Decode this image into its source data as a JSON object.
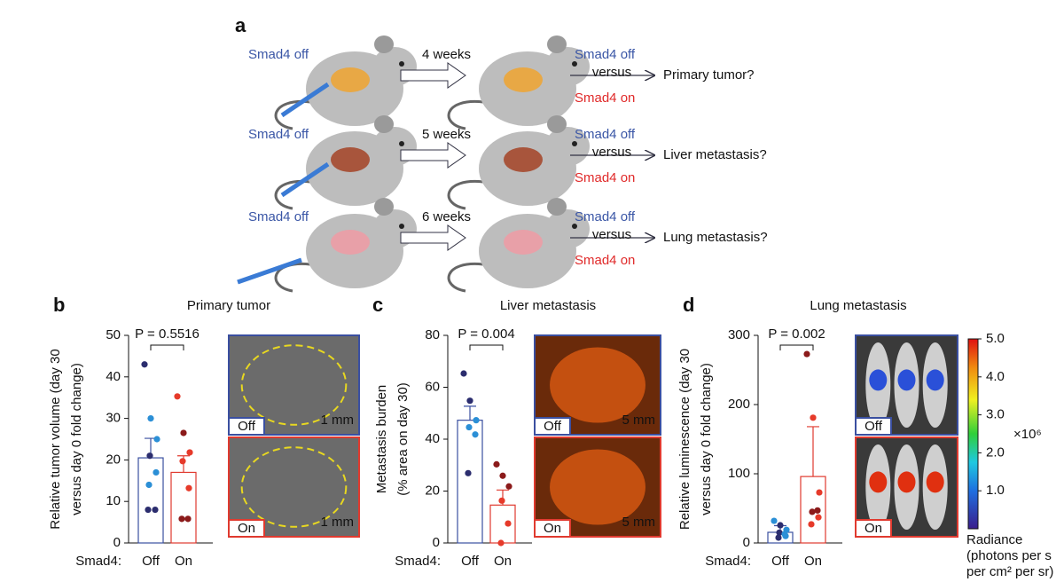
{
  "panel_a": {
    "label": "a",
    "rows": [
      {
        "start": "Smad4 off",
        "time": "4 weeks",
        "off": "Smad4 off",
        "versus": "versus",
        "on": "Smad4 on",
        "question": "Primary tumor?"
      },
      {
        "start": "Smad4 off",
        "time": "5 weeks",
        "off": "Smad4 off",
        "versus": "versus",
        "on": "Smad4 on",
        "question": "Liver metastasis?"
      },
      {
        "start": "Smad4 off",
        "time": "6 weeks",
        "off": "Smad4 off",
        "versus": "versus",
        "on": "Smad4 on",
        "question": "Lung metastasis?"
      }
    ]
  },
  "chart_data": [
    {
      "type": "bar",
      "panel": "b",
      "title": "Primary tumor",
      "ylabel": [
        "Relative tumor volume (day 30",
        "versus day 0 fold change)"
      ],
      "group_label": "Smad4:",
      "categories": [
        "Off",
        "On"
      ],
      "values": [
        20.5,
        17
      ],
      "errors": [
        4.7,
        4
      ],
      "colors": [
        "#3a4fa0",
        "#e03a2f"
      ],
      "points": [
        [
          43,
          30,
          25,
          21,
          17,
          14,
          8,
          8
        ],
        [
          35.3,
          26.5,
          21.8,
          19.7,
          13.2,
          5.8,
          5.8
        ]
      ],
      "point_colors": [
        [
          "#2b2d6e",
          "#2b8fd6",
          "#2b8fd6",
          "#2b2d6e",
          "#2b8fd6",
          "#2b8fd6",
          "#2b2d6e",
          "#2b2d6e"
        ],
        [
          "#e63a2a",
          "#8b1a1a",
          "#e63a2a",
          "#e63a2a",
          "#e63a2a",
          "#8b1a1a",
          "#8b1a1a"
        ]
      ],
      "ylim": [
        0,
        50
      ],
      "yticks": [
        0,
        10,
        20,
        30,
        40,
        50
      ],
      "pvalue": "P = 0.5516",
      "images": [
        {
          "tag": "Off",
          "scale": "1 mm"
        },
        {
          "tag": "On",
          "scale": "1 mm"
        }
      ]
    },
    {
      "type": "bar",
      "panel": "c",
      "title": "Liver metastasis",
      "ylabel": [
        "Metastasis burden",
        "(% area on day 30)"
      ],
      "group_label": "Smad4:",
      "categories": [
        "Off",
        "On"
      ],
      "values": [
        47.3,
        14.6
      ],
      "errors": [
        5.4,
        5.8
      ],
      "colors": [
        "#3a4fa0",
        "#e03a2f"
      ],
      "points": [
        [
          65.3,
          54.8,
          47.3,
          44.6,
          41.8,
          26.9
        ],
        [
          30.3,
          25.9,
          21.8,
          16.3,
          7.5,
          0
        ]
      ],
      "point_colors": [
        [
          "#2b2d6e",
          "#2b2d6e",
          "#2b8fd6",
          "#2b8fd6",
          "#2b8fd6",
          "#2b2d6e"
        ],
        [
          "#8b1a1a",
          "#8b1a1a",
          "#8b1a1a",
          "#e63a2a",
          "#e63a2a",
          "#e63a2a"
        ]
      ],
      "ylim": [
        0,
        80
      ],
      "yticks": [
        0,
        20,
        40,
        60,
        80
      ],
      "pvalue": "P = 0.004",
      "images": [
        {
          "tag": "Off",
          "scale": "5 mm"
        },
        {
          "tag": "On",
          "scale": "5 mm"
        }
      ]
    },
    {
      "type": "bar",
      "panel": "d",
      "title": "Lung metastasis",
      "ylabel": [
        "Relative luminescence (day 30",
        "versus day 0 fold change)"
      ],
      "group_label": "Smad4:",
      "categories": [
        "Off",
        "On"
      ],
      "values": [
        15.4,
        96
      ],
      "errors": [
        9.6,
        72
      ],
      "colors": [
        "#3a4fa0",
        "#e03a2f"
      ],
      "points": [
        [
          32,
          25.6,
          19,
          15,
          10,
          7.7,
          12.8
        ],
        [
          273,
          181,
          73,
          45,
          37,
          27,
          47
        ]
      ],
      "point_colors": [
        [
          "#2b8fd6",
          "#2b2d6e",
          "#2b8fd6",
          "#2b2d6e",
          "#2b8fd6",
          "#2b2d6e",
          "#2b8fd6"
        ],
        [
          "#8b1a1a",
          "#e63a2a",
          "#e63a2a",
          "#8b1a1a",
          "#e63a2a",
          "#e63a2a",
          "#8b1a1a"
        ]
      ],
      "ylim": [
        0,
        300
      ],
      "yticks": [
        0,
        100,
        200,
        300
      ],
      "pvalue": "P = 0.002",
      "images": [
        {
          "tag": "Off"
        },
        {
          "tag": "On"
        }
      ],
      "colorbar": {
        "lim": [
          0,
          5
        ],
        "ticks": [
          {
            "value": 5,
            "label": "5.0"
          },
          {
            "value": 4,
            "label": "4.0"
          },
          {
            "value": 3,
            "label": "3.0"
          },
          {
            "value": 2,
            "label": "2.0"
          },
          {
            "value": 1,
            "label": "1.0"
          }
        ],
        "exponent": "×10⁶",
        "label": [
          "Radiance",
          "(photons per s",
          "per cm² per sr)"
        ]
      }
    }
  ]
}
